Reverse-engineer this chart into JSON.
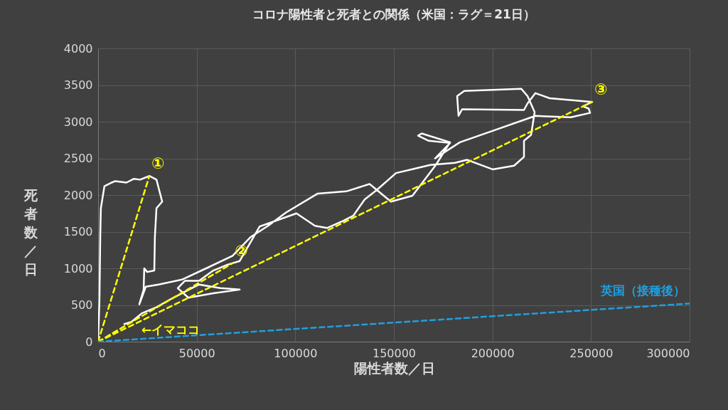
{
  "chart_data": {
    "type": "line",
    "title": "コロナ陽性者と死者との関係（米国：ラグ＝21日）",
    "xlabel": "陽性者数／日",
    "ylabel": "死者数／日",
    "xlim": [
      0,
      300000
    ],
    "xticks": [
      0,
      50000,
      100000,
      150000,
      200000,
      250000,
      300000
    ],
    "ylim": [
      0,
      4000
    ],
    "yticks": [
      0,
      500,
      1000,
      1500,
      2000,
      2500,
      3000,
      3500,
      4000
    ],
    "grid": true,
    "series": [
      {
        "color": "#ffffff",
        "line_style": "solid",
        "x": [
          0,
          700,
          1100,
          1400,
          3200,
          6900,
          8700,
          14400,
          18000,
          21300,
          26000,
          29600,
          32500,
          29600,
          28800,
          28500,
          24900,
          23400,
          23100,
          20900,
          24200,
          30700,
          42900,
          54800,
          68200,
          77500,
          86200,
          95200,
          111400,
          125900,
          137700,
          148500,
          159400,
          171300,
          178500,
          164100,
          162300,
          167700,
          178500,
          170900,
          183500,
          201600,
          221800,
          239800,
          249500,
          248800,
          245900,
          250600,
          229000,
          221800,
          217800,
          216000,
          184600,
          182800,
          182100,
          185700,
          214600,
          217800,
          221400,
          219600,
          216000,
          216000,
          211000,
          200100,
          187200,
          181000,
          168400,
          160500,
          151100,
          141400,
          135200,
          129500,
          124400,
          116100,
          110000,
          100600,
          81900,
          71800,
          65600,
          58400,
          51200,
          44000,
          40400,
          45800,
          58400,
          71800,
          62000,
          51200,
          44000,
          36800,
          29600,
          22400,
          16900,
          13300
        ],
        "values": [
          0,
          580,
          1460,
          1820,
          2120,
          2170,
          2190,
          2170,
          2220,
          2210,
          2260,
          2210,
          1910,
          1820,
          1430,
          970,
          950,
          1000,
          710,
          510,
          750,
          780,
          850,
          1000,
          1170,
          1430,
          1580,
          1760,
          2020,
          2050,
          2150,
          1910,
          1990,
          2410,
          2720,
          2840,
          2810,
          2740,
          2710,
          2500,
          2720,
          2890,
          3080,
          3060,
          3120,
          3180,
          3210,
          3270,
          3320,
          3390,
          3250,
          3160,
          3170,
          3080,
          3350,
          3420,
          3450,
          3350,
          3130,
          2820,
          2740,
          2520,
          2400,
          2350,
          2480,
          2440,
          2410,
          2360,
          2300,
          2070,
          1940,
          1720,
          1650,
          1550,
          1580,
          1750,
          1570,
          1100,
          1050,
          970,
          830,
          830,
          730,
          600,
          660,
          710,
          730,
          780,
          680,
          580,
          470,
          390,
          270,
          240
        ]
      },
      {
        "color": "#ffff00",
        "line_style": "dashed",
        "x": [
          0,
          26000
        ],
        "values": [
          0,
          2260
        ]
      },
      {
        "color": "#ffff00",
        "line_style": "dashed",
        "x": [
          0,
          68200
        ],
        "values": [
          0,
          1070
        ]
      },
      {
        "color": "#ffff00",
        "line_style": "dashed",
        "x": [
          0,
          250600
        ],
        "values": [
          0,
          3270
        ]
      },
      {
        "name": "英国（接種後）",
        "color": "#1ea0e0",
        "line_style": "dashed",
        "x": [
          0,
          300000
        ],
        "values": [
          0,
          520
        ]
      }
    ],
    "annotations": [
      {
        "text": "①",
        "x": 26000,
        "y": 2260
      },
      {
        "text": "②",
        "x": 68200,
        "y": 1070
      },
      {
        "text": "③",
        "x": 250600,
        "y": 3270
      },
      {
        "text": "←イマココ",
        "x": 13300,
        "y": 240
      }
    ]
  }
}
